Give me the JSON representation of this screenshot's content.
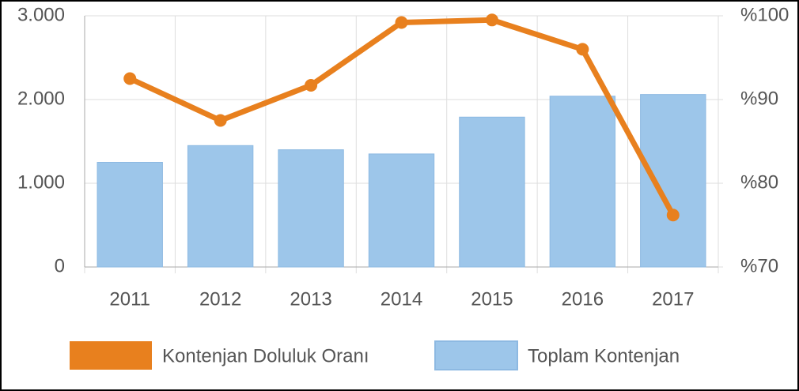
{
  "chart_data": {
    "type": "bar+line",
    "categories": [
      "2011",
      "2012",
      "2013",
      "2014",
      "2015",
      "2016",
      "2017"
    ],
    "series": [
      {
        "name": "Kontenjan Doluluk Oranı",
        "type": "line",
        "axis": "y2",
        "color": "#e8801e",
        "values": [
          92.5,
          87.5,
          91.7,
          99.2,
          99.5,
          96.0,
          76.2
        ]
      },
      {
        "name": "Toplam Kontenjan",
        "type": "bar",
        "color": "#9dc6ea",
        "values": [
          1250,
          1450,
          1400,
          1350,
          1790,
          2040,
          2060
        ]
      }
    ],
    "ylim": [
      0,
      3000
    ],
    "yticks": [
      0,
      {
        "value": 1000,
        "label": "1.000"
      },
      {
        "value": 2000,
        "label": "2.000"
      },
      {
        "value": 3000,
        "label": "3.000"
      }
    ],
    "y2lim": [
      70,
      100
    ],
    "y2ticks": [
      {
        "value": 70,
        "label": "%70"
      },
      {
        "value": 80,
        "label": "%80"
      },
      {
        "value": 90,
        "label": "%90"
      },
      {
        "value": 100,
        "label": "%100"
      }
    ],
    "grid": true,
    "legend": "bottom"
  }
}
